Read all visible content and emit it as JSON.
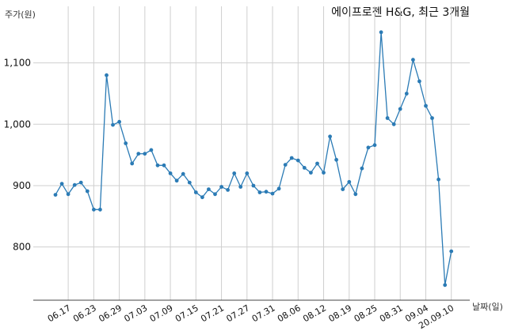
{
  "chart_data": {
    "type": "line",
    "title": "에이프로젠 H&G, 최근 3개월",
    "ylabel": "주가(원)",
    "xlabel": "날짜(일)",
    "ylim": [
      720,
      1160
    ],
    "grid": true,
    "line_color": "#2b7bb5",
    "yticks": [
      {
        "value": 800,
        "label": "800"
      },
      {
        "value": 900,
        "label": "900"
      },
      {
        "value": 1000,
        "label": "1,000"
      },
      {
        "value": 1100,
        "label": "1,100"
      }
    ],
    "xticks": [
      {
        "index": 2,
        "label": "06.17"
      },
      {
        "index": 6,
        "label": "06.23"
      },
      {
        "index": 10,
        "label": "06.29"
      },
      {
        "index": 14,
        "label": "07.03"
      },
      {
        "index": 18,
        "label": "07.09"
      },
      {
        "index": 22,
        "label": "07.15"
      },
      {
        "index": 26,
        "label": "07.21"
      },
      {
        "index": 30,
        "label": "07.27"
      },
      {
        "index": 34,
        "label": "07.31"
      },
      {
        "index": 38,
        "label": "08.06"
      },
      {
        "index": 42,
        "label": "08.12"
      },
      {
        "index": 46,
        "label": "08.19"
      },
      {
        "index": 50,
        "label": "08.25"
      },
      {
        "index": 54,
        "label": "08.31"
      },
      {
        "index": 58,
        "label": "09.04"
      },
      {
        "index": 62,
        "label": "20.09.10"
      }
    ],
    "values": [
      885,
      903,
      886,
      901,
      905,
      891,
      861,
      861,
      1080,
      999,
      1004,
      969,
      936,
      952,
      952,
      958,
      933,
      933,
      920,
      908,
      919,
      905,
      889,
      881,
      894,
      886,
      898,
      893,
      920,
      898,
      920,
      900,
      889,
      890,
      887,
      895,
      934,
      945,
      941,
      929,
      921,
      936,
      921,
      980,
      942,
      894,
      906,
      886,
      928,
      962,
      966,
      1150,
      1010,
      1000,
      1025,
      1050,
      1105,
      1070,
      1030,
      1010,
      910,
      738,
      793
    ]
  }
}
